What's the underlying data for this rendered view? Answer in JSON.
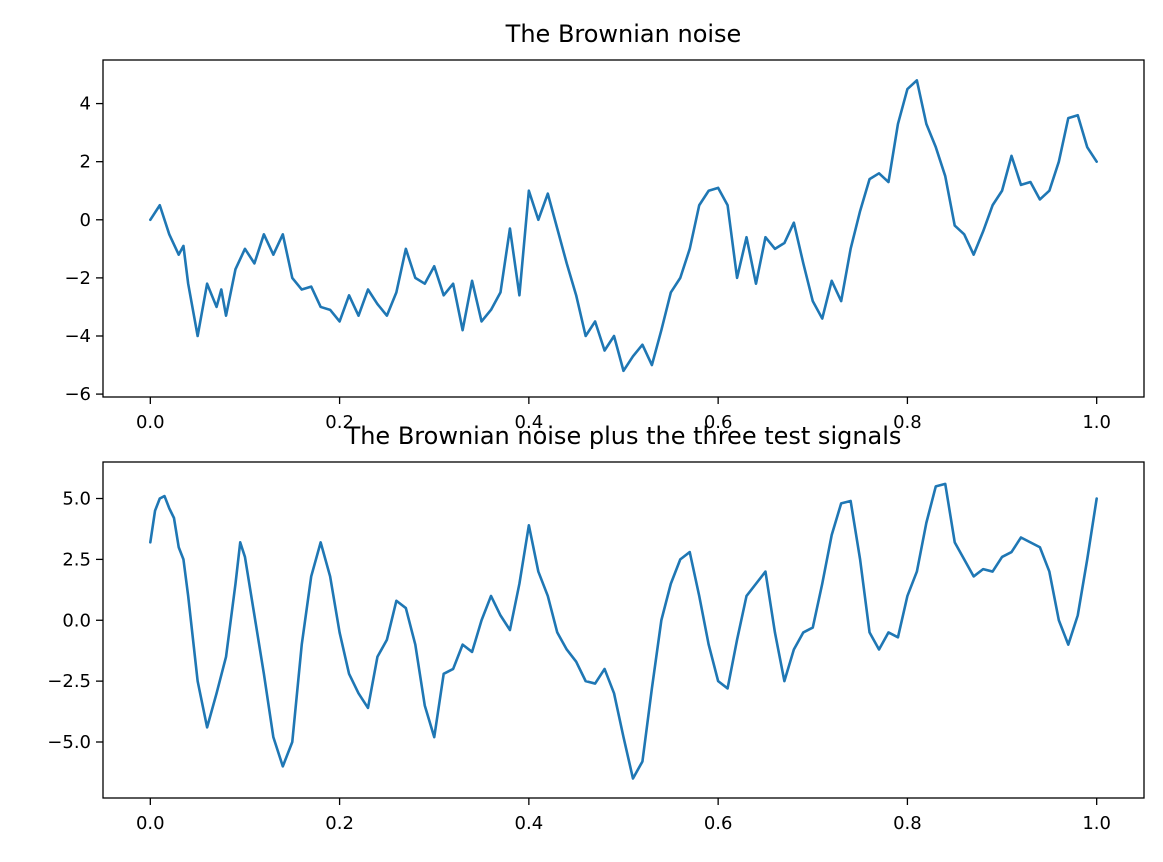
{
  "chart_data": [
    {
      "type": "line",
      "title": "The Brownian noise",
      "xlabel": "",
      "ylabel": "",
      "xlim": [
        -0.05,
        1.05
      ],
      "ylim": [
        -6.1,
        5.5
      ],
      "xticks": [
        0.0,
        0.2,
        0.4,
        0.6,
        0.8,
        1.0
      ],
      "xtick_labels": [
        "0.0",
        "0.2",
        "0.4",
        "0.6",
        "0.8",
        "1.0"
      ],
      "yticks": [
        -6,
        -4,
        -2,
        0,
        2,
        4
      ],
      "ytick_labels": [
        "−6",
        "−4",
        "−2",
        "0",
        "2",
        "4"
      ],
      "grid": false,
      "color": "#1f77b4",
      "series": [
        {
          "x": [
            0.0,
            0.01,
            0.02,
            0.03,
            0.035,
            0.04,
            0.05,
            0.06,
            0.07,
            0.075,
            0.08,
            0.09,
            0.1,
            0.11,
            0.12,
            0.13,
            0.14,
            0.15,
            0.16,
            0.17,
            0.18,
            0.19,
            0.2,
            0.21,
            0.22,
            0.23,
            0.24,
            0.25,
            0.26,
            0.27,
            0.28,
            0.29,
            0.3,
            0.31,
            0.32,
            0.33,
            0.34,
            0.35,
            0.36,
            0.37,
            0.38,
            0.39,
            0.4,
            0.41,
            0.42,
            0.43,
            0.44,
            0.45,
            0.46,
            0.47,
            0.48,
            0.49,
            0.5,
            0.51,
            0.52,
            0.53,
            0.54,
            0.55,
            0.56,
            0.57,
            0.58,
            0.59,
            0.6,
            0.61,
            0.62,
            0.63,
            0.64,
            0.65,
            0.66,
            0.67,
            0.68,
            0.69,
            0.7,
            0.71,
            0.72,
            0.73,
            0.74,
            0.75,
            0.76,
            0.77,
            0.78,
            0.79,
            0.8,
            0.81,
            0.82,
            0.83,
            0.84,
            0.85,
            0.86,
            0.87,
            0.88,
            0.89,
            0.9,
            0.91,
            0.92,
            0.93,
            0.94,
            0.95,
            0.96,
            0.97,
            0.98,
            0.99,
            1.0
          ],
          "y": [
            0.0,
            0.5,
            -0.5,
            -1.2,
            -0.9,
            -2.2,
            -4.0,
            -2.2,
            -3.0,
            -2.4,
            -3.3,
            -1.7,
            -1.0,
            -1.5,
            -0.5,
            -1.2,
            -0.5,
            -2.0,
            -2.4,
            -2.3,
            -3.0,
            -3.1,
            -3.5,
            -2.6,
            -3.3,
            -2.4,
            -2.9,
            -3.3,
            -2.5,
            -1.0,
            -2.0,
            -2.2,
            -1.6,
            -2.6,
            -2.2,
            -3.8,
            -2.1,
            -3.5,
            -3.1,
            -2.5,
            -0.3,
            -2.6,
            1.0,
            0.0,
            0.9,
            -0.3,
            -1.5,
            -2.6,
            -4.0,
            -3.5,
            -4.5,
            -4.0,
            -5.2,
            -4.7,
            -4.3,
            -5.0,
            -3.8,
            -2.5,
            -2.0,
            -1.0,
            0.5,
            1.0,
            1.1,
            0.5,
            -2.0,
            -0.6,
            -2.2,
            -0.6,
            -1.0,
            -0.8,
            -0.1,
            -1.5,
            -2.8,
            -3.4,
            -2.1,
            -2.8,
            -1.0,
            0.3,
            1.4,
            1.6,
            1.3,
            3.3,
            4.5,
            4.8,
            3.3,
            2.5,
            1.5,
            -0.2,
            -0.5,
            -1.2,
            -0.4,
            0.5,
            1.0,
            2.2,
            1.2,
            1.3,
            0.7,
            1.0,
            2.0,
            3.5,
            3.6,
            2.5,
            2.0
          ]
        }
      ]
    },
    {
      "type": "line",
      "title": "The Brownian noise plus the three test signals",
      "xlabel": "",
      "ylabel": "",
      "xlim": [
        -0.05,
        1.05
      ],
      "ylim": [
        -7.3,
        6.5
      ],
      "xticks": [
        0.0,
        0.2,
        0.4,
        0.6,
        0.8,
        1.0
      ],
      "xtick_labels": [
        "0.0",
        "0.2",
        "0.4",
        "0.6",
        "0.8",
        "1.0"
      ],
      "yticks": [
        -5.0,
        -2.5,
        0.0,
        2.5,
        5.0
      ],
      "ytick_labels": [
        "−5.0",
        "−2.5",
        "0.0",
        "2.5",
        "5.0"
      ],
      "grid": false,
      "color": "#1f77b4",
      "series": [
        {
          "x": [
            0.0,
            0.005,
            0.01,
            0.015,
            0.02,
            0.025,
            0.03,
            0.035,
            0.04,
            0.05,
            0.06,
            0.07,
            0.08,
            0.09,
            0.095,
            0.1,
            0.11,
            0.12,
            0.13,
            0.14,
            0.15,
            0.16,
            0.17,
            0.18,
            0.19,
            0.2,
            0.21,
            0.22,
            0.23,
            0.24,
            0.25,
            0.26,
            0.27,
            0.28,
            0.29,
            0.3,
            0.31,
            0.32,
            0.33,
            0.34,
            0.35,
            0.36,
            0.37,
            0.38,
            0.39,
            0.4,
            0.41,
            0.42,
            0.43,
            0.44,
            0.45,
            0.46,
            0.47,
            0.48,
            0.49,
            0.5,
            0.51,
            0.52,
            0.53,
            0.54,
            0.55,
            0.56,
            0.57,
            0.58,
            0.59,
            0.6,
            0.61,
            0.62,
            0.63,
            0.64,
            0.65,
            0.66,
            0.67,
            0.68,
            0.69,
            0.7,
            0.71,
            0.72,
            0.73,
            0.74,
            0.75,
            0.76,
            0.77,
            0.78,
            0.79,
            0.8,
            0.81,
            0.82,
            0.83,
            0.84,
            0.85,
            0.86,
            0.87,
            0.88,
            0.89,
            0.9,
            0.91,
            0.92,
            0.93,
            0.94,
            0.95,
            0.96,
            0.97,
            0.98,
            0.99,
            1.0
          ],
          "y": [
            3.2,
            4.5,
            5.0,
            5.1,
            4.6,
            4.2,
            3.0,
            2.5,
            1.0,
            -2.5,
            -4.4,
            -3.0,
            -1.5,
            1.5,
            3.2,
            2.6,
            0.2,
            -2.2,
            -4.8,
            -6.0,
            -5.0,
            -1.0,
            1.8,
            3.2,
            1.8,
            -0.5,
            -2.2,
            -3.0,
            -3.6,
            -1.5,
            -0.8,
            0.8,
            0.5,
            -1.0,
            -3.5,
            -4.8,
            -2.2,
            -2.0,
            -1.0,
            -1.3,
            0.0,
            1.0,
            0.2,
            -0.4,
            1.5,
            3.9,
            2.0,
            1.0,
            -0.5,
            -1.2,
            -1.7,
            -2.5,
            -2.6,
            -2.0,
            -3.0,
            -4.8,
            -6.5,
            -5.8,
            -2.8,
            0.0,
            1.5,
            2.5,
            2.8,
            1.0,
            -1.0,
            -2.5,
            -2.8,
            -0.8,
            1.0,
            1.5,
            2.0,
            -0.5,
            -2.5,
            -1.2,
            -0.5,
            -0.3,
            1.5,
            3.5,
            4.8,
            4.9,
            2.5,
            -0.5,
            -1.2,
            -0.5,
            -0.7,
            1.0,
            2.0,
            4.0,
            5.5,
            5.6,
            3.2,
            2.5,
            1.8,
            2.1,
            2.0,
            2.6,
            2.8,
            3.4,
            3.2,
            3.0,
            2.0,
            0.0,
            -1.0,
            0.2,
            2.5,
            5.0
          ]
        }
      ]
    }
  ]
}
